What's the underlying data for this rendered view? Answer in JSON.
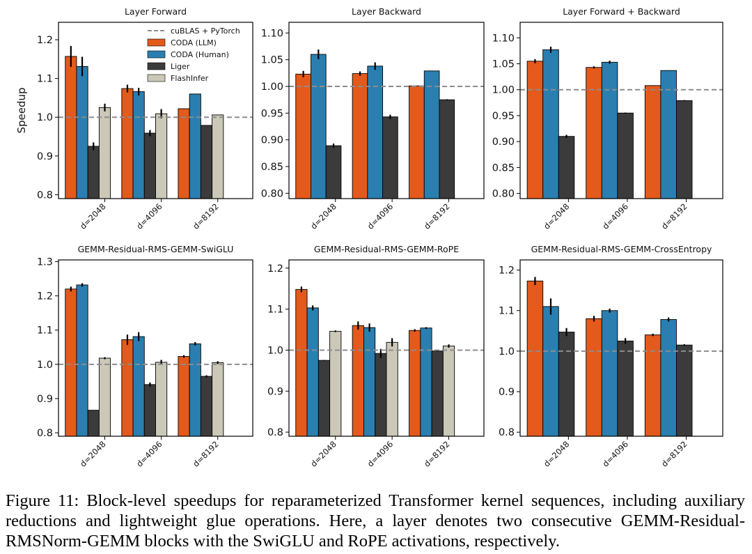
{
  "legend": [
    {
      "key": "baseline",
      "label": "cuBLAS + PyTorch",
      "style": "dashed",
      "color": "#8c8c8c"
    },
    {
      "key": "llm",
      "label": "CODA (LLM)",
      "color": "#e35a1c"
    },
    {
      "key": "human",
      "label": "CODA (Human)",
      "color": "#2a7fb0"
    },
    {
      "key": "liger",
      "label": "Liger",
      "color": "#3b3b3b"
    },
    {
      "key": "flash",
      "label": "FlashInfer",
      "color": "#cbc8b7"
    }
  ],
  "caption": {
    "label": "Figure 11:",
    "text": "Block-level speedups for reparameterized Transformer kernel sequences, including auxiliary reductions and lightweight glue operations. Here, a layer denotes two consecutive GEMM-Residual-RMSNorm-GEMM blocks with the SwiGLU and RoPE activations, respectively."
  },
  "chart_data": [
    {
      "type": "bar",
      "title": "Layer Forward",
      "ylabel": "Speedup",
      "categories": [
        "d=2048",
        "d=4096",
        "d=8192"
      ],
      "ylim": [
        0.79,
        1.245
      ],
      "yticks": [
        0.8,
        0.9,
        1.0,
        1.1,
        1.2
      ],
      "tick_decimals": 1,
      "baseline": 1.0,
      "legend": "top-right",
      "series": [
        {
          "name": "CODA (LLM)",
          "values": [
            1.157,
            1.074,
            1.022
          ],
          "errors": [
            0.027,
            0.01,
            0.0
          ]
        },
        {
          "name": "CODA (Human)",
          "values": [
            1.131,
            1.066,
            1.06
          ],
          "errors": [
            0.025,
            0.01,
            0.0
          ]
        },
        {
          "name": "Liger",
          "values": [
            0.925,
            0.959,
            0.979
          ],
          "errors": [
            0.01,
            0.008,
            0.0
          ]
        },
        {
          "name": "FlashInfer",
          "values": [
            1.025,
            1.009,
            1.006
          ],
          "errors": [
            0.01,
            0.012,
            0.0
          ]
        }
      ]
    },
    {
      "type": "bar",
      "title": "Layer Backward",
      "ylabel": "",
      "categories": [
        "d=2048",
        "d=4096",
        "d=8192"
      ],
      "ylim": [
        0.79,
        1.12
      ],
      "yticks": [
        0.8,
        0.85,
        0.9,
        0.95,
        1.0,
        1.05,
        1.1
      ],
      "tick_decimals": 2,
      "baseline": 1.0,
      "series": [
        {
          "name": "CODA (LLM)",
          "values": [
            1.023,
            1.024,
            1.001
          ],
          "errors": [
            0.006,
            0.004,
            0.0
          ]
        },
        {
          "name": "CODA (Human)",
          "values": [
            1.06,
            1.038,
            1.029
          ],
          "errors": [
            0.009,
            0.007,
            0.0
          ]
        },
        {
          "name": "Liger",
          "values": [
            0.889,
            0.943,
            0.975
          ],
          "errors": [
            0.004,
            0.004,
            0.001
          ]
        }
      ]
    },
    {
      "type": "bar",
      "title": "Layer Forward + Backward",
      "ylabel": "",
      "categories": [
        "d=2048",
        "d=4096",
        "d=8192"
      ],
      "ylim": [
        0.79,
        1.13
      ],
      "yticks": [
        0.8,
        0.85,
        0.9,
        0.95,
        1.0,
        1.05,
        1.1
      ],
      "tick_decimals": 2,
      "baseline": 1.0,
      "series": [
        {
          "name": "CODA (LLM)",
          "values": [
            1.055,
            1.043,
            1.008
          ],
          "errors": [
            0.004,
            0.002,
            0.0
          ]
        },
        {
          "name": "CODA (Human)",
          "values": [
            1.077,
            1.053,
            1.037
          ],
          "errors": [
            0.006,
            0.003,
            0.0
          ]
        },
        {
          "name": "Liger",
          "values": [
            0.91,
            0.955,
            0.979
          ],
          "errors": [
            0.003,
            0.001,
            0.001
          ]
        }
      ]
    },
    {
      "type": "bar",
      "title": "GEMM-Residual-RMS-GEMM-SwiGLU",
      "ylabel": "",
      "categories": [
        "d=2048",
        "d=4096",
        "d=8192"
      ],
      "ylim": [
        0.79,
        1.305
      ],
      "yticks": [
        0.8,
        0.9,
        1.0,
        1.1,
        1.2,
        1.3
      ],
      "tick_decimals": 1,
      "baseline": 1.0,
      "series": [
        {
          "name": "CODA (LLM)",
          "values": [
            1.22,
            1.072,
            1.023
          ],
          "errors": [
            0.007,
            0.015,
            0.004
          ]
        },
        {
          "name": "CODA (Human)",
          "values": [
            1.232,
            1.081,
            1.06
          ],
          "errors": [
            0.005,
            0.013,
            0.005
          ]
        },
        {
          "name": "Liger",
          "values": [
            0.866,
            0.941,
            0.965
          ],
          "errors": [
            0.0,
            0.006,
            0.003
          ]
        },
        {
          "name": "FlashInfer",
          "values": [
            1.018,
            1.006,
            1.005
          ],
          "errors": [
            0.003,
            0.007,
            0.004
          ]
        }
      ]
    },
    {
      "type": "bar",
      "title": "GEMM-Residual-RMS-GEMM-RoPE",
      "ylabel": "",
      "categories": [
        "d=2048",
        "d=4096",
        "d=8192"
      ],
      "ylim": [
        0.79,
        1.22
      ],
      "yticks": [
        0.8,
        0.9,
        1.0,
        1.1,
        1.2
      ],
      "tick_decimals": 1,
      "baseline": 1.0,
      "series": [
        {
          "name": "CODA (LLM)",
          "values": [
            1.148,
            1.06,
            1.048
          ],
          "errors": [
            0.007,
            0.01,
            0.003
          ]
        },
        {
          "name": "CODA (Human)",
          "values": [
            1.103,
            1.055,
            1.054
          ],
          "errors": [
            0.006,
            0.01,
            0.002
          ]
        },
        {
          "name": "Liger",
          "values": [
            0.975,
            0.992,
            0.998
          ],
          "errors": [
            0.001,
            0.011,
            0.002
          ]
        },
        {
          "name": "FlashInfer",
          "values": [
            1.046,
            1.019,
            1.01
          ],
          "errors": [
            0.002,
            0.01,
            0.004
          ]
        }
      ]
    },
    {
      "type": "bar",
      "title": "GEMM-Residual-RMS-GEMM-CrossEntropy",
      "ylabel": "",
      "categories": [
        "d=2048",
        "d=4096",
        "d=8192"
      ],
      "ylim": [
        0.79,
        1.225
      ],
      "yticks": [
        0.8,
        0.9,
        1.0,
        1.1,
        1.2
      ],
      "tick_decimals": 1,
      "baseline": 1.0,
      "series": [
        {
          "name": "CODA (LLM)",
          "values": [
            1.173,
            1.08,
            1.04
          ],
          "errors": [
            0.01,
            0.007,
            0.003
          ]
        },
        {
          "name": "CODA (Human)",
          "values": [
            1.11,
            1.1,
            1.078
          ],
          "errors": [
            0.02,
            0.005,
            0.005
          ]
        },
        {
          "name": "Liger",
          "values": [
            1.047,
            1.025,
            1.015
          ],
          "errors": [
            0.01,
            0.007,
            0.002
          ]
        }
      ]
    }
  ]
}
